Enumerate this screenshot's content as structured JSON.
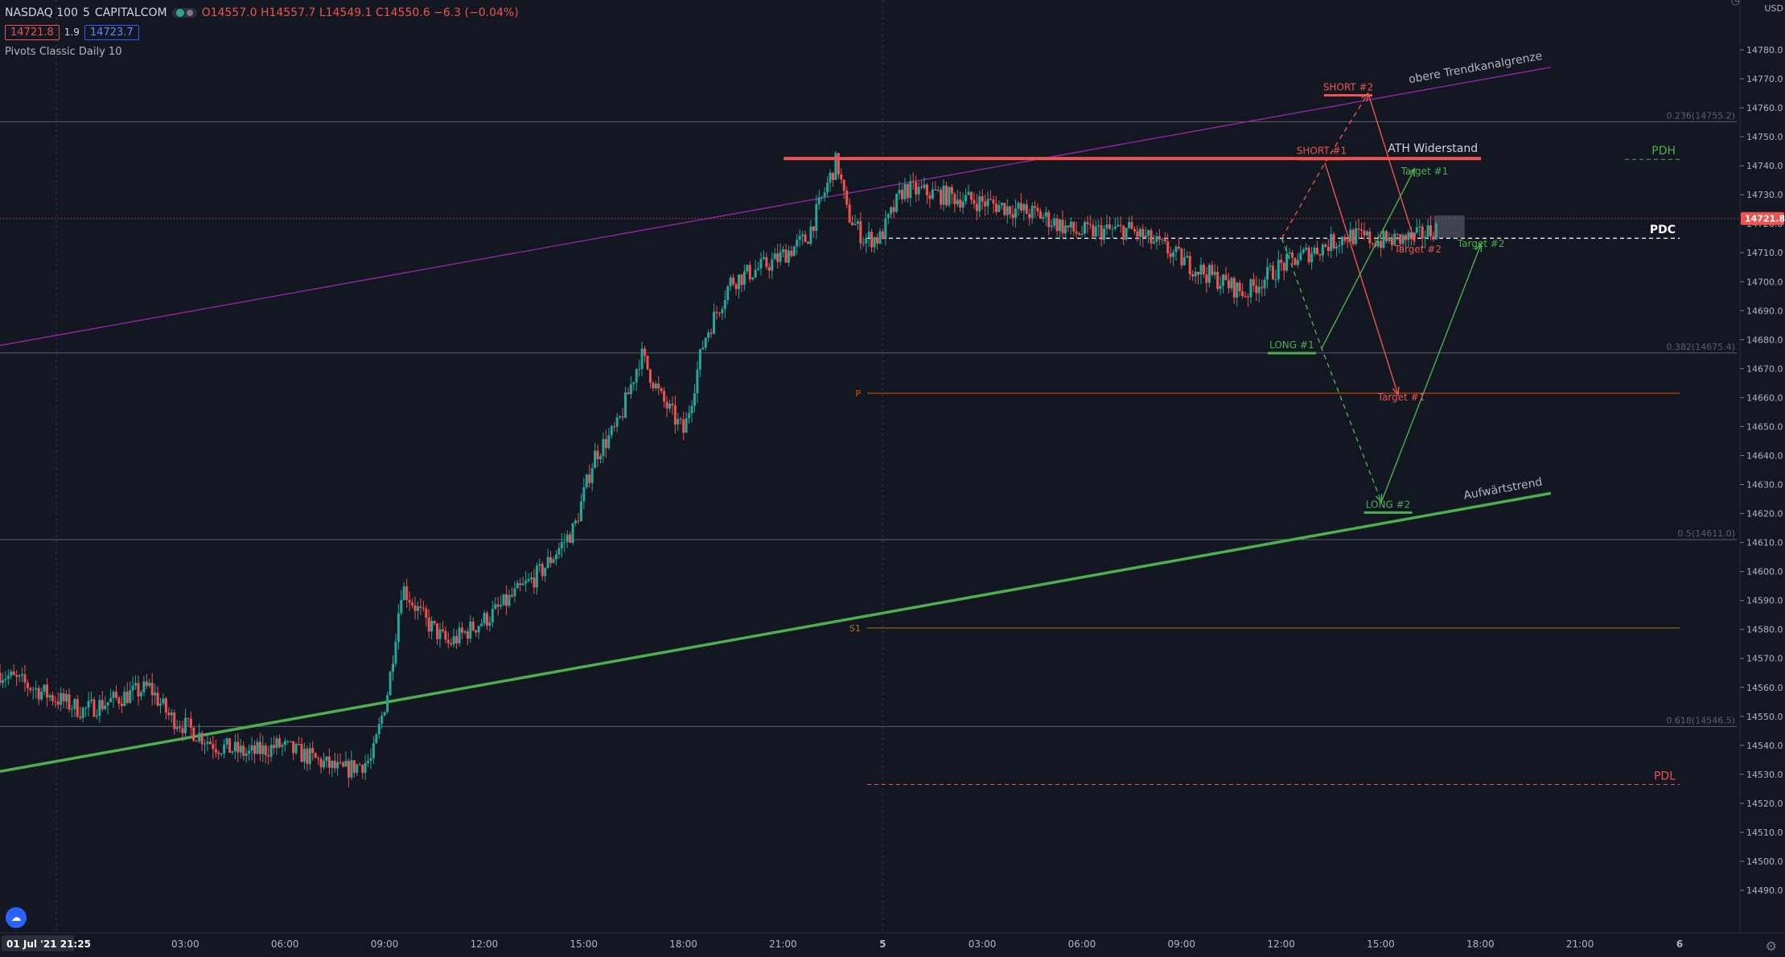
{
  "legend": {
    "symbol": "NASDAQ 100",
    "interval": "5",
    "exchange": "CAPITALCOM",
    "open": "O14557.0",
    "high": "H14557.7",
    "low": "L14549.1",
    "close": "C14550.6",
    "change": "−6.3 (−0.04%)",
    "bid": "14721.8",
    "spread": "1.9",
    "ask": "14723.7",
    "indicator": "Pivots Classic Daily 10"
  },
  "axis": {
    "currency": "USD",
    "current_price_label": "14721.8"
  },
  "chart_data": {
    "type": "candlestick",
    "ylim": [
      14484,
      14782
    ],
    "y_ticks": [
      14490,
      14500,
      14510,
      14520,
      14530,
      14540,
      14550,
      14560,
      14570,
      14580,
      14590,
      14600,
      14610,
      14620,
      14630,
      14640,
      14650,
      14660,
      14670,
      14680,
      14690,
      14700,
      14710,
      14720,
      14730,
      14740,
      14750,
      14760,
      14770,
      14780
    ],
    "x_ticks": [
      "01 Jul '21  21:25",
      "03:00",
      "06:00",
      "09:00",
      "12:00",
      "15:00",
      "18:00",
      "21:00",
      "5",
      "03:00",
      "06:00",
      "09:00",
      "12:00",
      "15:00",
      "18:00",
      "21:00",
      "6"
    ],
    "x_tick_hours": [
      0,
      5.58,
      8.58,
      11.58,
      14.58,
      17.58,
      20.58,
      23.58,
      26.58,
      29.58,
      32.58,
      35.58,
      38.58,
      41.58,
      44.58,
      47.58,
      50.58
    ],
    "time_range_hours": [
      0,
      50.58
    ],
    "last_candle_hours": 43.33,
    "price_path": [
      [
        0,
        14565
      ],
      [
        2.5,
        14552
      ],
      [
        4.5,
        14560
      ],
      [
        5.1,
        14550
      ],
      [
        6.5,
        14540
      ],
      [
        7.5,
        14537
      ],
      [
        8.4,
        14540
      ],
      [
        9.3,
        14536
      ],
      [
        10.3,
        14531
      ],
      [
        11.2,
        14535
      ],
      [
        11.7,
        14560
      ],
      [
        12.1,
        14595
      ],
      [
        12.8,
        14583
      ],
      [
        13.5,
        14575
      ],
      [
        14.8,
        14585
      ],
      [
        16.3,
        14600
      ],
      [
        17.3,
        14615
      ],
      [
        17.9,
        14640
      ],
      [
        18.6,
        14650
      ],
      [
        19.3,
        14675
      ],
      [
        19.9,
        14660
      ],
      [
        20.6,
        14648
      ],
      [
        21.2,
        14680
      ],
      [
        22.0,
        14700
      ],
      [
        23.3,
        14707
      ],
      [
        24.3,
        14715
      ],
      [
        25.2,
        14742
      ],
      [
        25.5,
        14724
      ],
      [
        26.0,
        14715
      ],
      [
        26.5,
        14715
      ],
      [
        27.2,
        14732
      ],
      [
        28.3,
        14730
      ],
      [
        29.8,
        14727
      ],
      [
        31.3,
        14723
      ],
      [
        32.4,
        14717
      ],
      [
        34.0,
        14718
      ],
      [
        35.0,
        14712
      ],
      [
        35.8,
        14706
      ],
      [
        36.8,
        14700
      ],
      [
        37.5,
        14696
      ],
      [
        38.5,
        14705
      ],
      [
        39.6,
        14711
      ],
      [
        40.6,
        14716
      ],
      [
        41.6,
        14714
      ],
      [
        42.6,
        14715
      ],
      [
        43.33,
        14719
      ]
    ],
    "price_levels": [
      {
        "label": "0.236(14755.2)",
        "value": 14755.2,
        "kind": "fib"
      },
      {
        "label": "0.382(14675.4)",
        "value": 14675.4,
        "kind": "fib"
      },
      {
        "label": "0.5(14611.0)",
        "value": 14611.0,
        "kind": "fib"
      },
      {
        "label": "0.618(14546.5)",
        "value": 14546.5,
        "kind": "fib"
      },
      {
        "label": "P",
        "value": 14661.5,
        "kind": "pivot"
      },
      {
        "label": "S1",
        "value": 14580.5,
        "kind": "pivot"
      },
      {
        "label": "PDH",
        "value": 14742.2,
        "kind": "pdh"
      },
      {
        "label": "PDC",
        "value": 14715.0,
        "kind": "pdc"
      },
      {
        "label": "PDL",
        "value": 14526.5,
        "kind": "pdl"
      }
    ],
    "trendlines": [
      {
        "label": "obere Trendkanalgrenze",
        "from": [
          0,
          14678
        ],
        "to": [
          46.7,
          14774
        ],
        "color": "#9c27b0"
      },
      {
        "label": "Aufwärtstrend",
        "from": [
          0,
          14531
        ],
        "to": [
          46.7,
          14627
        ],
        "color": "#4caf50"
      }
    ],
    "resistance": {
      "label": "ATH Widerstand",
      "value": 14742.5,
      "from": 23.6,
      "to": 44.6
    },
    "scenario_labels": [
      {
        "label": "SHORT #2",
        "at": [
          40.6,
          14766
        ],
        "color": "#ef5350"
      },
      {
        "label": "SHORT #1",
        "at": [
          39.8,
          14744
        ],
        "color": "#ef5350"
      },
      {
        "label": "Target #1",
        "at": [
          42.9,
          14737
        ],
        "color": "#4caf50"
      },
      {
        "label": "Target #2",
        "at": [
          42.7,
          14710
        ],
        "color": "#ef5350"
      },
      {
        "label": "Target #2",
        "at": [
          44.6,
          14712
        ],
        "color": "#4caf50"
      },
      {
        "label": "LONG #1",
        "at": [
          38.9,
          14677
        ],
        "color": "#4caf50"
      },
      {
        "label": "Target #1",
        "at": [
          42.2,
          14659
        ],
        "color": "#ef5350"
      },
      {
        "label": "LONG #2",
        "at": [
          41.8,
          14622
        ],
        "color": "#4caf50"
      }
    ],
    "scenario_paths": [
      {
        "points": [
          [
            38.6,
            14715
          ],
          [
            39.9,
            14741
          ],
          [
            41.2,
            14765
          ]
        ],
        "color": "#ef5350",
        "dashed": true
      },
      {
        "points": [
          [
            39.9,
            14741
          ],
          [
            42.1,
            14661
          ]
        ],
        "color": "#ef5350",
        "dashed": false
      },
      {
        "points": [
          [
            41.2,
            14765
          ],
          [
            42.6,
            14714
          ]
        ],
        "color": "#ef5350",
        "dashed": false
      },
      {
        "points": [
          [
            38.6,
            14715
          ],
          [
            39.8,
            14677
          ],
          [
            41.6,
            14624
          ]
        ],
        "color": "#4caf50",
        "dashed": true
      },
      {
        "points": [
          [
            39.8,
            14677
          ],
          [
            42.6,
            14739
          ]
        ],
        "color": "#4caf50",
        "dashed": false
      },
      {
        "points": [
          [
            41.6,
            14624
          ],
          [
            44.6,
            14713
          ]
        ],
        "color": "#4caf50",
        "dashed": false
      }
    ],
    "grid": false
  }
}
